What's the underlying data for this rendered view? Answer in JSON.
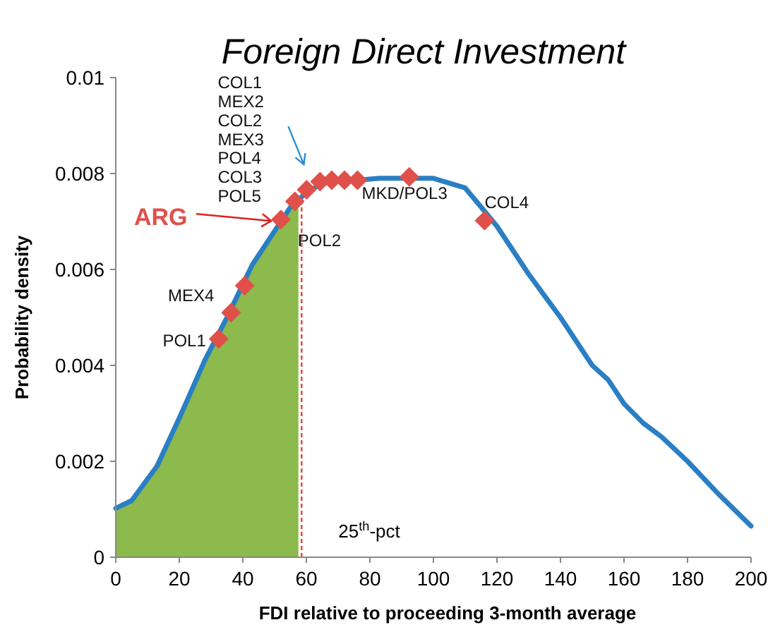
{
  "chart_data": {
    "type": "line",
    "title": "Foreign Direct Investment",
    "xlabel": "FDI relative to proceeding 3-month average",
    "ylabel": "Probability density",
    "xlim": [
      0,
      200
    ],
    "xticks": [
      0,
      20,
      40,
      60,
      80,
      100,
      120,
      140,
      160,
      180,
      200
    ],
    "ylim": [
      0,
      0.01
    ],
    "yticks": [
      0,
      0.002,
      0.004,
      0.006,
      0.008,
      0.01
    ],
    "grid": false,
    "series": [
      {
        "type": "area",
        "color": "#8cba4c",
        "x": [
          0,
          5,
          13,
          20,
          28,
          35,
          43,
          50,
          55,
          57.5
        ],
        "values": [
          0.00102,
          0.00118,
          0.0019,
          0.0029,
          0.0041,
          0.005,
          0.0061,
          0.0068,
          0.0073,
          0.0075
        ]
      },
      {
        "color": "#2a7fc4",
        "marker": "none",
        "x": [
          0,
          5,
          13,
          20,
          28,
          35,
          43,
          50,
          55,
          60,
          65,
          83,
          90,
          100,
          105,
          110,
          115,
          120,
          125,
          130,
          140,
          150,
          155,
          160,
          166,
          172,
          180,
          190,
          200
        ],
        "values": [
          0.00102,
          0.00118,
          0.0019,
          0.0029,
          0.0041,
          0.005,
          0.0061,
          0.0068,
          0.0073,
          0.0076,
          0.0078,
          0.0079,
          0.0079,
          0.0079,
          0.0078,
          0.0077,
          0.0073,
          0.0069,
          0.0064,
          0.0059,
          0.005,
          0.004,
          0.0037,
          0.0032,
          0.0028,
          0.0025,
          0.002,
          0.0013,
          0.00065
        ]
      },
      {
        "type": "scatter",
        "color": "#e0504a",
        "marker": "diamond",
        "x": [
          32.4,
          36.3,
          40.6,
          52,
          56.4,
          60.1,
          64.3,
          68,
          72,
          76.1,
          92.4,
          116.1
        ],
        "values": [
          0.00455,
          0.0051,
          0.00566,
          0.00704,
          0.00742,
          0.00766,
          0.00783,
          0.00786,
          0.00786,
          0.00786,
          0.00793,
          0.00702
        ]
      }
    ],
    "ref_lines": [
      {
        "axis": "x",
        "value": 58.5,
        "label": "25$^{th}$-pct",
        "color": "#e0504a",
        "line_style": "dotted"
      }
    ],
    "annotations": [
      {
        "text": "POL1",
        "x": 32.4,
        "y": 0.00455
      },
      {
        "text": "MEX4",
        "x": 36.3,
        "y": 0.0051
      },
      {
        "text": "ARG",
        "x": 52,
        "y": 0.00704
      },
      {
        "text": "POL2",
        "x": 56.4,
        "y": 0.00742
      },
      {
        "text": "COL1\nMEX2\nCOL2\nMEX3\nPOL4\nCOL3\nPOL5",
        "x": 60.1,
        "y": 0.00766
      },
      {
        "text": "MKD/POL3",
        "x": 76.1,
        "y": 0.00786
      },
      {
        "text": "COL4",
        "x": 116.1,
        "y": 0.00702
      }
    ]
  }
}
